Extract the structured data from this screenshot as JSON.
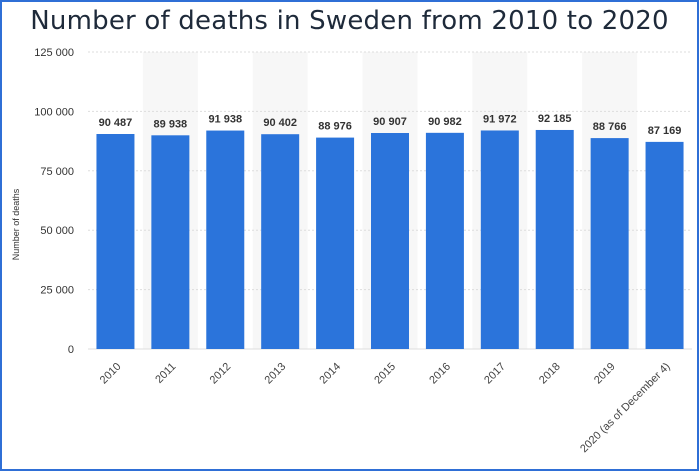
{
  "chart_data": {
    "type": "bar",
    "title": "Number of deaths in Sweden from 2010 to 2020",
    "ylabel": "Number of deaths",
    "xlabel": "",
    "categories": [
      "2010",
      "2011",
      "2012",
      "2013",
      "2014",
      "2015",
      "2016",
      "2017",
      "2018",
      "2019",
      "2020 (as of December 4)"
    ],
    "values": [
      90487,
      89938,
      91938,
      90402,
      88976,
      90907,
      90982,
      91972,
      92185,
      88766,
      87169
    ],
    "value_labels": [
      "90 487",
      "89 938",
      "91 938",
      "90 402",
      "88 976",
      "90 907",
      "90 982",
      "91 972",
      "92 185",
      "88 766",
      "87 169"
    ],
    "ylim": [
      0,
      125000
    ],
    "yticks": [
      0,
      25000,
      50000,
      75000,
      100000,
      125000
    ],
    "ytick_labels": [
      "0",
      "25 000",
      "50 000",
      "75 000",
      "100 000",
      "125 000"
    ],
    "grid": true,
    "legend": "none",
    "bar_color": "#2b74db"
  }
}
